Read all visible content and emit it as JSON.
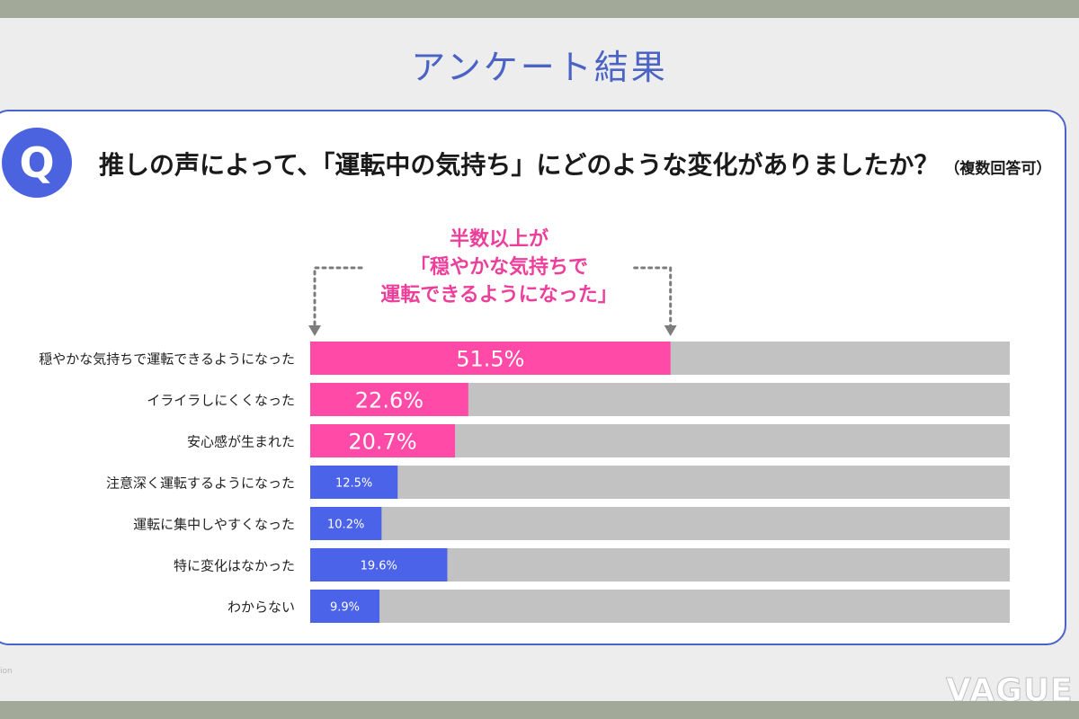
{
  "page": {
    "title": "アンケート結果",
    "question": "推しの声によって、「運転中の気持ち」にどのような変化がありましたか？",
    "question_note": "（複数回答可）",
    "q_badge": "Q",
    "callout_lines": [
      "半数以上が",
      "「穏やかな気持ちで",
      "運転できるようになった」"
    ],
    "footer_fragment": "ion",
    "logo": "VAGUE"
  },
  "colors": {
    "highlight": "#ff4aa8",
    "normal": "#4b63e8",
    "track": "#c2c2c2",
    "callout": "#ec3f9b",
    "arrow": "#7d7d7d"
  },
  "chart_data": {
    "type": "bar",
    "orientation": "horizontal",
    "value_unit": "%",
    "xlim": [
      0,
      100
    ],
    "categories": [
      "穏やかな気持ちで運転できるようになった",
      "イライラしにくくなった",
      "安心感が生まれた",
      "注意深く運転するようになった",
      "運転に集中しやすくなった",
      "特に変化はなかった",
      "わからない"
    ],
    "values": [
      51.5,
      22.6,
      20.7,
      12.5,
      10.2,
      19.6,
      9.9
    ],
    "value_labels": [
      "51.5%",
      "22.6%",
      "20.7%",
      "12.5%",
      "10.2%",
      "19.6%",
      "9.9%"
    ],
    "highlighted": [
      true,
      true,
      true,
      false,
      false,
      false,
      false
    ],
    "grid": false,
    "legend": "none"
  }
}
